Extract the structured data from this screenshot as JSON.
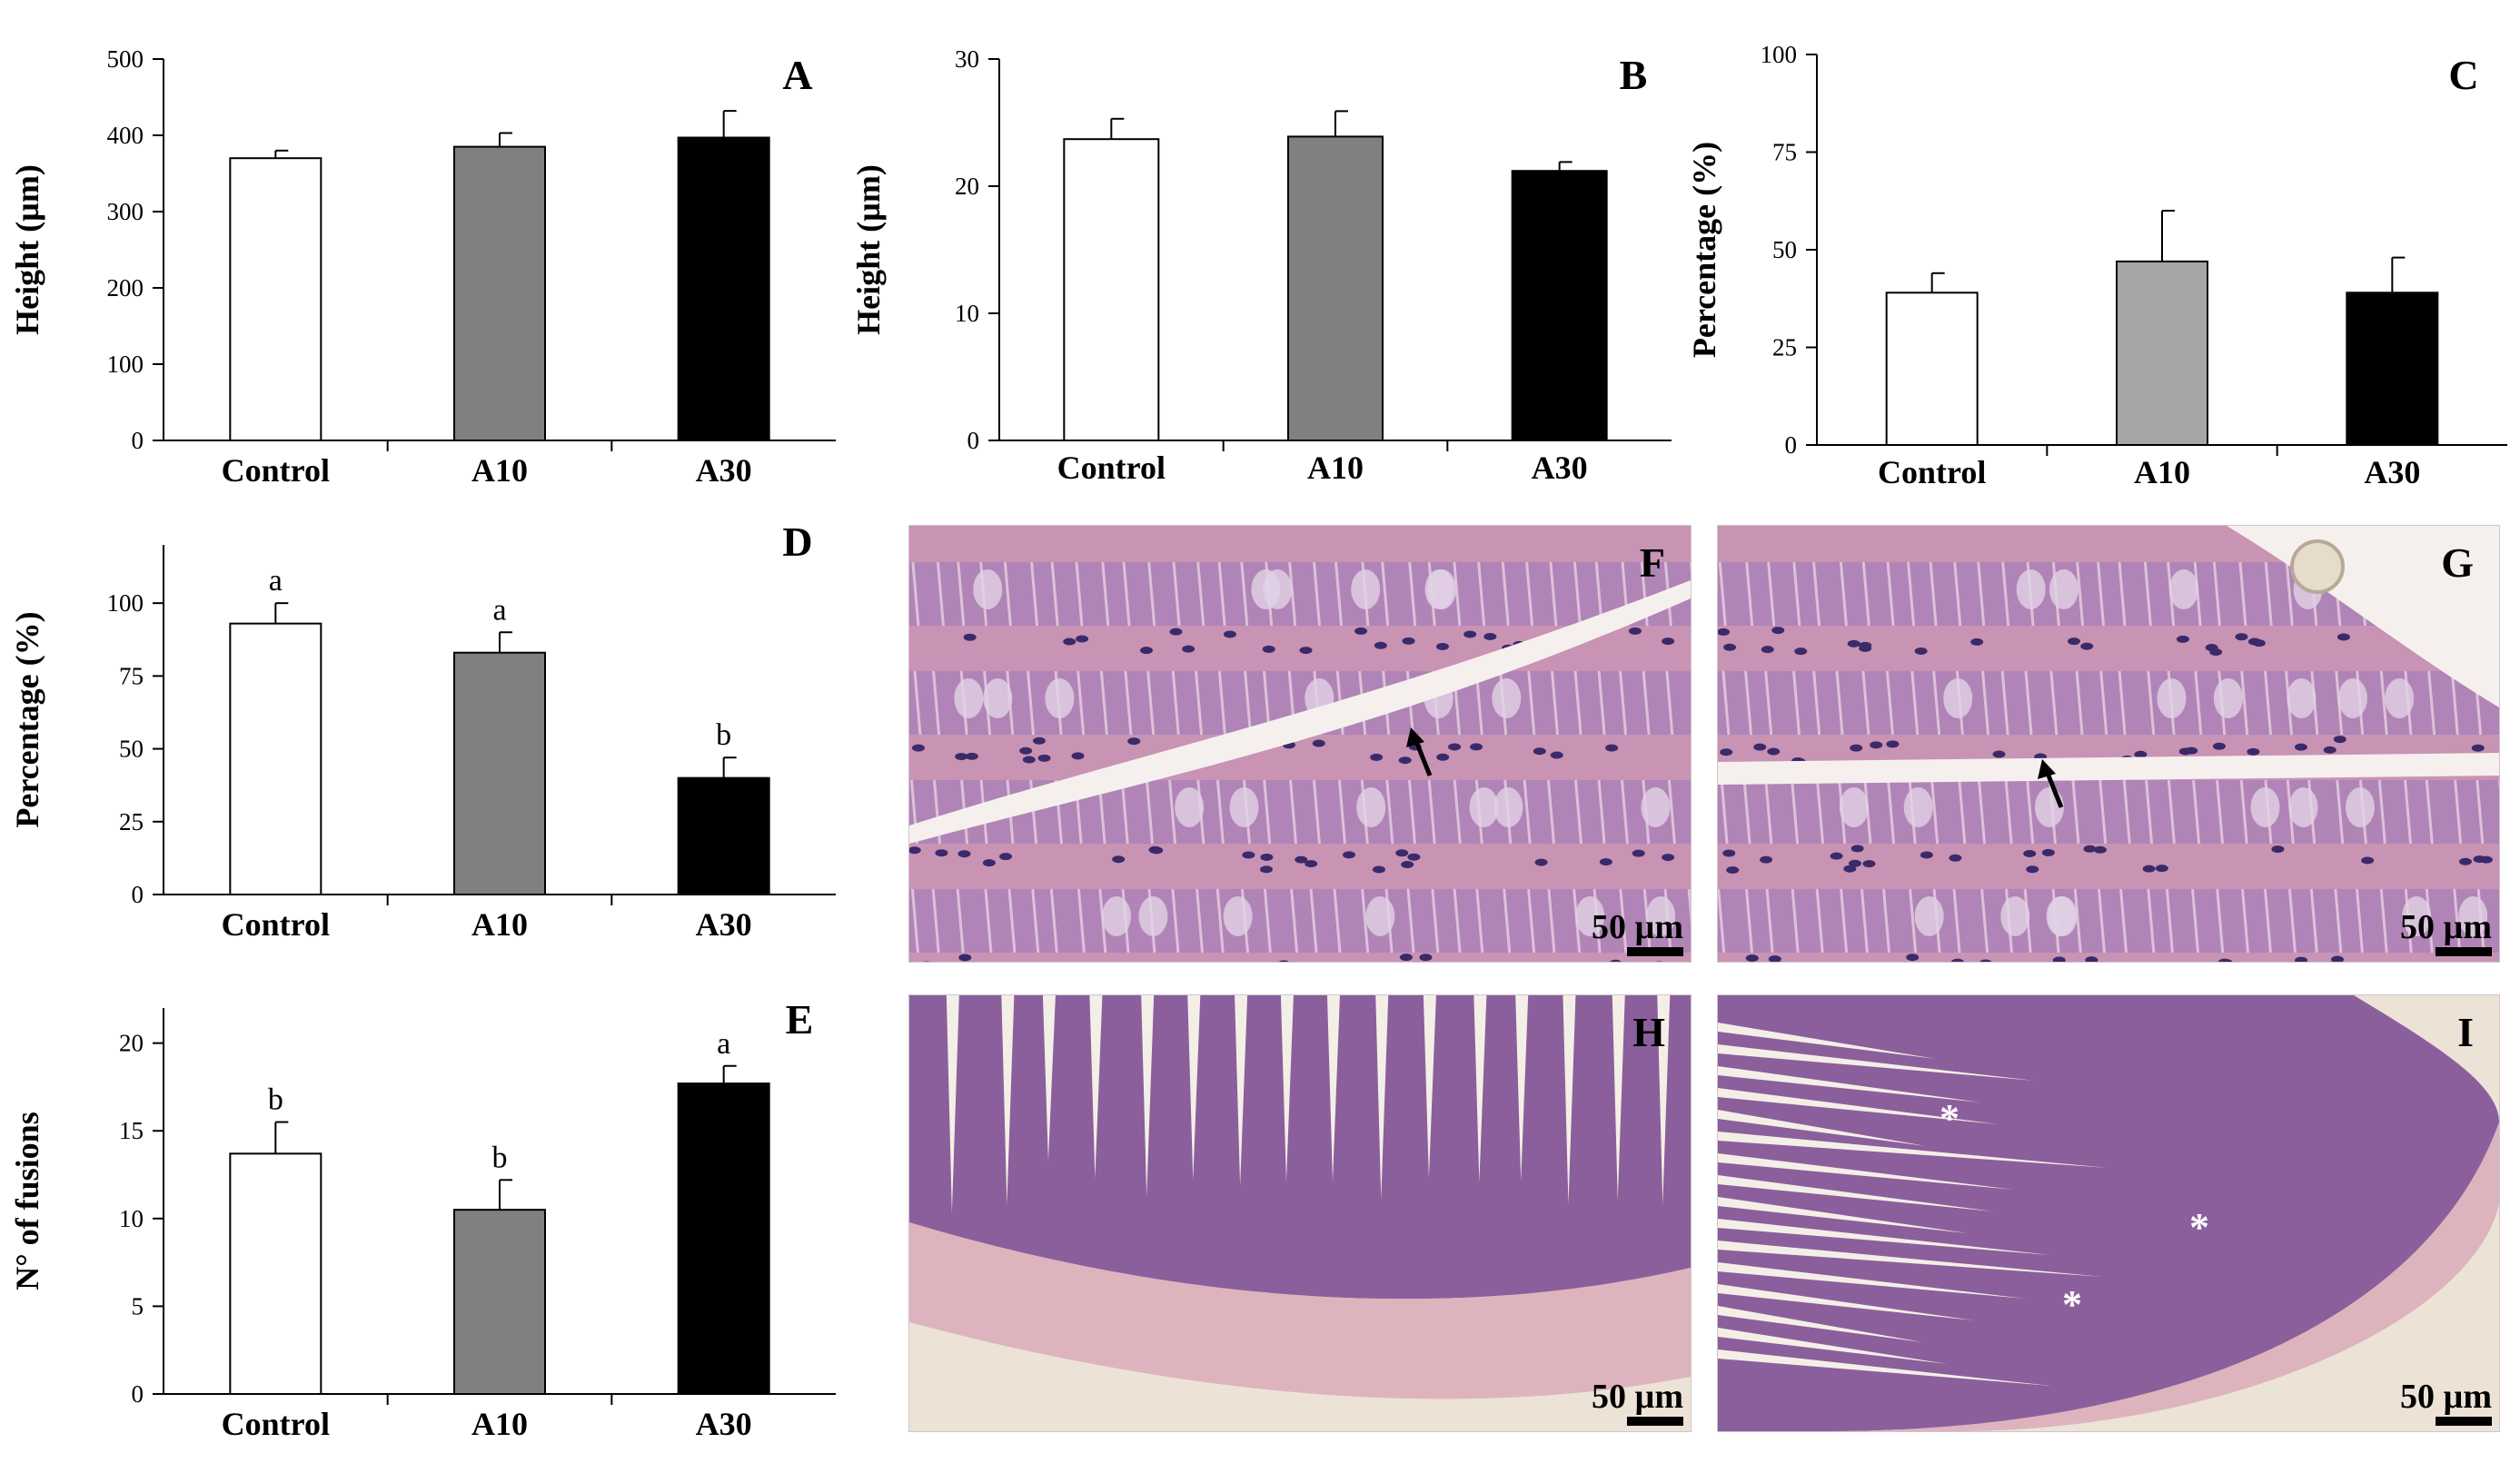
{
  "chart_data": [
    {
      "id": "A",
      "type": "bar",
      "letter": "A",
      "ylabel": "Height (µm)",
      "categories": [
        "Control",
        "A10",
        "A30"
      ],
      "values": [
        370,
        385,
        397
      ],
      "errors": [
        10,
        18,
        35
      ],
      "sig_letters": [
        "",
        "",
        ""
      ],
      "ylim": [
        0,
        500
      ],
      "yticks": [
        0,
        100,
        200,
        300,
        400,
        500
      ],
      "bar_colors": [
        "#ffffff",
        "#808080",
        "#000000"
      ]
    },
    {
      "id": "B",
      "type": "bar",
      "letter": "B",
      "ylabel": "Height (µm)",
      "categories": [
        "Control",
        "A10",
        "A30"
      ],
      "values": [
        23.7,
        23.9,
        21.2
      ],
      "errors": [
        1.6,
        2.0,
        0.7
      ],
      "sig_letters": [
        "",
        "",
        ""
      ],
      "ylim": [
        0,
        30
      ],
      "yticks": [
        0,
        10,
        20,
        30
      ],
      "bar_colors": [
        "#ffffff",
        "#808080",
        "#000000"
      ]
    },
    {
      "id": "C",
      "type": "bar",
      "letter": "C",
      "ylabel": "Percentage (%)",
      "categories": [
        "Control",
        "A10",
        "A30"
      ],
      "values": [
        39,
        47,
        39
      ],
      "errors": [
        5,
        13,
        9
      ],
      "sig_letters": [
        "",
        "",
        ""
      ],
      "ylim": [
        0,
        100
      ],
      "yticks": [
        0,
        25,
        50,
        75,
        100
      ],
      "bar_colors": [
        "#ffffff",
        "#a6a6a6",
        "#000000"
      ]
    },
    {
      "id": "D",
      "type": "bar",
      "letter": "D",
      "ylabel": "Percentage (%)",
      "categories": [
        "Control",
        "A10",
        "A30"
      ],
      "values": [
        93,
        83,
        40
      ],
      "errors": [
        7,
        7,
        7
      ],
      "sig_letters": [
        "a",
        "a",
        "b"
      ],
      "ylim": [
        0,
        120
      ],
      "yticks": [
        0,
        25,
        50,
        75,
        100
      ],
      "bar_colors": [
        "#ffffff",
        "#808080",
        "#000000"
      ]
    },
    {
      "id": "E",
      "type": "bar",
      "letter": "E",
      "ylabel": "N° of fusions",
      "categories": [
        "Control",
        "A10",
        "A30"
      ],
      "values": [
        13.7,
        10.5,
        17.7
      ],
      "errors": [
        1.8,
        1.7,
        1.0
      ],
      "sig_letters": [
        "b",
        "b",
        "a"
      ],
      "ylim": [
        0,
        22
      ],
      "yticks": [
        0,
        5,
        10,
        15,
        20
      ],
      "bar_colors": [
        "#ffffff",
        "#808080",
        "#000000"
      ]
    }
  ],
  "micrographs": [
    {
      "id": "F",
      "letter": "F",
      "scale_label": "50 µm",
      "view": "high-magnification",
      "markers": [
        "arrow"
      ]
    },
    {
      "id": "G",
      "letter": "G",
      "scale_label": "50 µm",
      "view": "high-magnification",
      "markers": [
        "arrow"
      ]
    },
    {
      "id": "H",
      "letter": "H",
      "scale_label": "50 µm",
      "view": "low-magnification",
      "markers": []
    },
    {
      "id": "I",
      "letter": "I",
      "scale_label": "50 µm",
      "view": "low-magnification",
      "markers": [
        "asterisk",
        "asterisk",
        "asterisk"
      ]
    }
  ],
  "colors": {
    "tissue_bg": "#c993b4",
    "nuclei": "#3a2a6a",
    "lumen": "#f5f0ee",
    "muscle": "#d9a8b8"
  }
}
